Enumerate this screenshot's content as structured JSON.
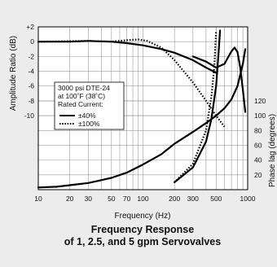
{
  "chart_data": {
    "type": "line",
    "title": "Frequency Response",
    "subtitle": "of 1, 2.5, and 5 gpm Servovalves",
    "xlabel": "Frequency (Hz)",
    "ylabel_left": "Amplitude Ratio (dB)",
    "ylabel_right": "Phase lag (degrees)",
    "x_scale": "log",
    "xlim": [
      10,
      1000
    ],
    "ylim_left": [
      -20,
      2
    ],
    "ylim_right": [
      0,
      220
    ],
    "x_ticks": [
      "10",
      "20",
      "30",
      "50",
      "70",
      "100",
      "200",
      "300",
      "500",
      "1000"
    ],
    "y_left_ticks": [
      "+2",
      "0",
      "-2",
      "-4",
      "-6",
      "-8",
      "-10"
    ],
    "y_right_ticks": [
      "120",
      "100",
      "80",
      "60",
      "40",
      "20"
    ],
    "grid": true,
    "legend_position": "left",
    "legend": {
      "lines": [
        "3000 psi DTE-24",
        "at 100˚F (38˚C)",
        "Rated Current:"
      ],
      "entries": [
        {
          "label": "±40%",
          "style": "solid"
        },
        {
          "label": "±100%",
          "style": "dotted"
        }
      ]
    },
    "series": [
      {
        "label": "±40%",
        "style": "solid",
        "axis": "amplitude",
        "x": [
          10,
          20,
          30,
          50,
          70,
          100,
          150,
          200,
          300,
          400,
          500
        ],
        "y": [
          0,
          0,
          0.1,
          0,
          -0.2,
          -0.5,
          -1,
          -1.5,
          -2.5,
          -3.5,
          -4.2
        ]
      },
      {
        "label": "±40%",
        "style": "solid",
        "axis": "amplitude",
        "x": [
          300,
          400,
          500,
          600,
          700,
          750,
          800,
          850,
          900,
          950
        ],
        "y": [
          -2,
          -2.7,
          -3.5,
          -3,
          -1.3,
          -0.8,
          -1.4,
          -3.5,
          -6.5,
          -9.5
        ]
      },
      {
        "label": "±100%",
        "style": "dotted",
        "axis": "amplitude",
        "x": [
          10,
          30,
          50,
          70,
          90,
          110,
          150,
          200,
          300,
          400,
          500,
          600
        ],
        "y": [
          0,
          0.1,
          0,
          0.2,
          0.3,
          0.1,
          -0.8,
          -2.5,
          -5.5,
          -8,
          -10,
          -11.5
        ]
      },
      {
        "label": "±40%",
        "style": "solid",
        "axis": "phase",
        "x": [
          10,
          15,
          20,
          30,
          50,
          70,
          100,
          150,
          200,
          300,
          400,
          500,
          600,
          700,
          800,
          900,
          950
        ],
        "y": [
          3,
          4,
          6,
          9,
          16,
          23,
          34,
          48,
          62,
          78,
          90,
          100,
          110,
          122,
          140,
          170,
          190
        ]
      },
      {
        "label": "±40%",
        "style": "solid",
        "axis": "phase",
        "x": [
          200,
          300,
          400,
          450,
          500,
          530,
          545
        ],
        "y": [
          10,
          30,
          65,
          95,
          140,
          190,
          215
        ]
      },
      {
        "label": "±100%",
        "style": "dotted",
        "axis": "phase",
        "x": [
          200,
          300,
          400,
          450,
          480,
          500
        ],
        "y": [
          10,
          35,
          80,
          125,
          165,
          215
        ]
      }
    ]
  }
}
